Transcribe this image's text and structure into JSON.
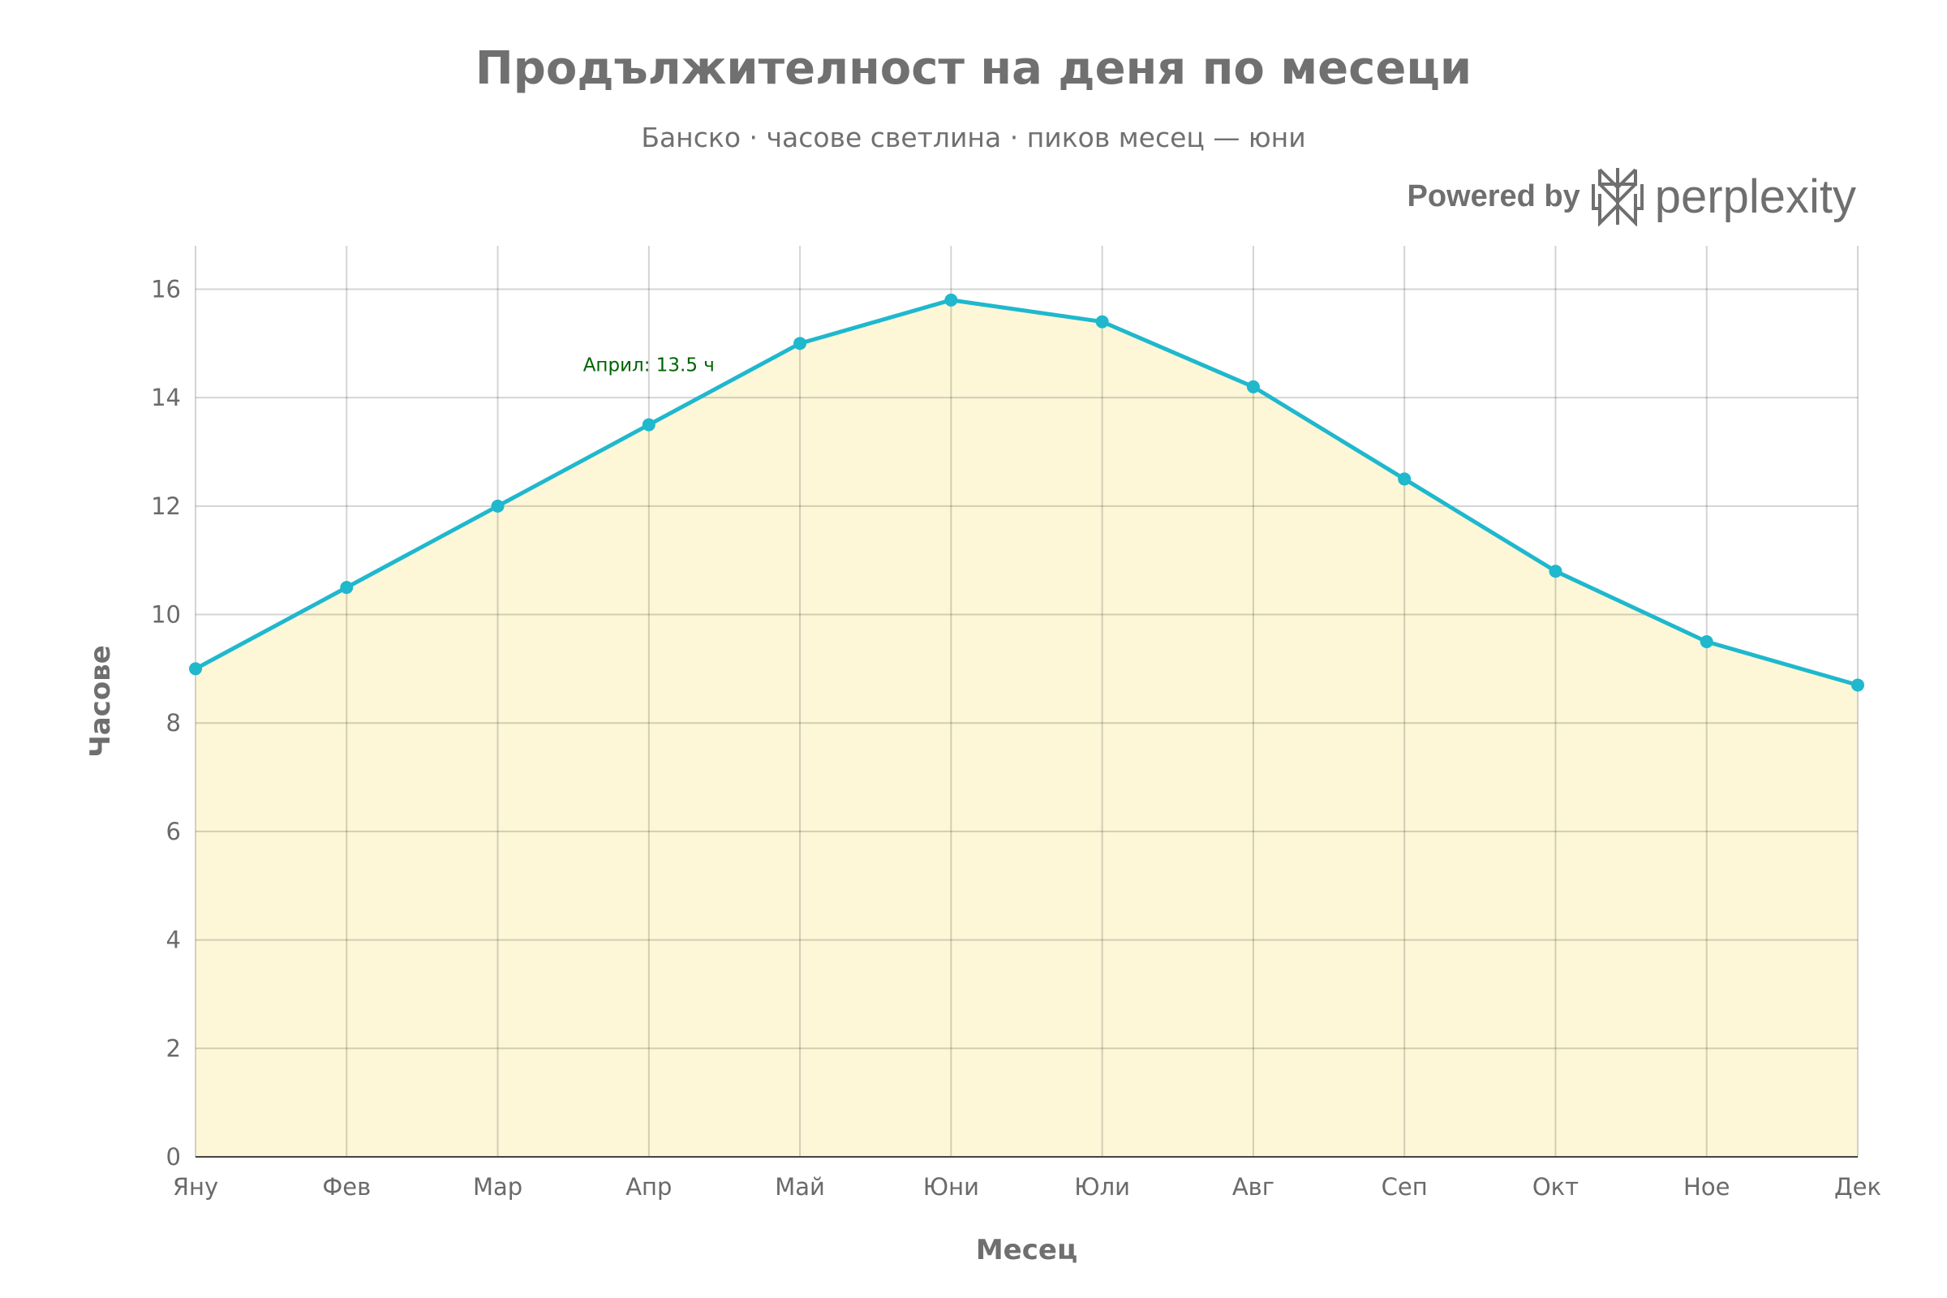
{
  "header": {
    "title": "Продължителност на деня по месеци",
    "subtitle": "Банско · часове светлина · пиков месец — юни",
    "powered_by": "Powered by",
    "brand": "perplexity"
  },
  "chart_data": {
    "type": "area",
    "title": "Продължителност на деня по месеци",
    "subtitle": "Банско · часове светлина · пиков месец — юни",
    "xlabel": "Месец",
    "ylabel": "Часове",
    "categories": [
      "Яну",
      "Фев",
      "Мар",
      "Апр",
      "Май",
      "Юни",
      "Юли",
      "Авг",
      "Сеп",
      "Окт",
      "Ное",
      "Дек"
    ],
    "series": [
      {
        "name": "Часове",
        "values": [
          9,
          10.5,
          12,
          13.5,
          15,
          15.8,
          15.4,
          14.2,
          12.5,
          10.8,
          9.5,
          8.7
        ]
      }
    ],
    "ylim": [
      0,
      16.8
    ],
    "yticks": [
      0,
      2,
      4,
      6,
      8,
      10,
      12,
      14,
      16
    ],
    "grid": true,
    "annotations": [
      {
        "category": "Апр",
        "value": 13.5,
        "text": "Април: 13.5 ч"
      }
    ],
    "colors": {
      "line": "#1fb8cd",
      "fill": "#fdf7d8",
      "grid": "#cfcfcf",
      "annotation": "#006400"
    }
  }
}
